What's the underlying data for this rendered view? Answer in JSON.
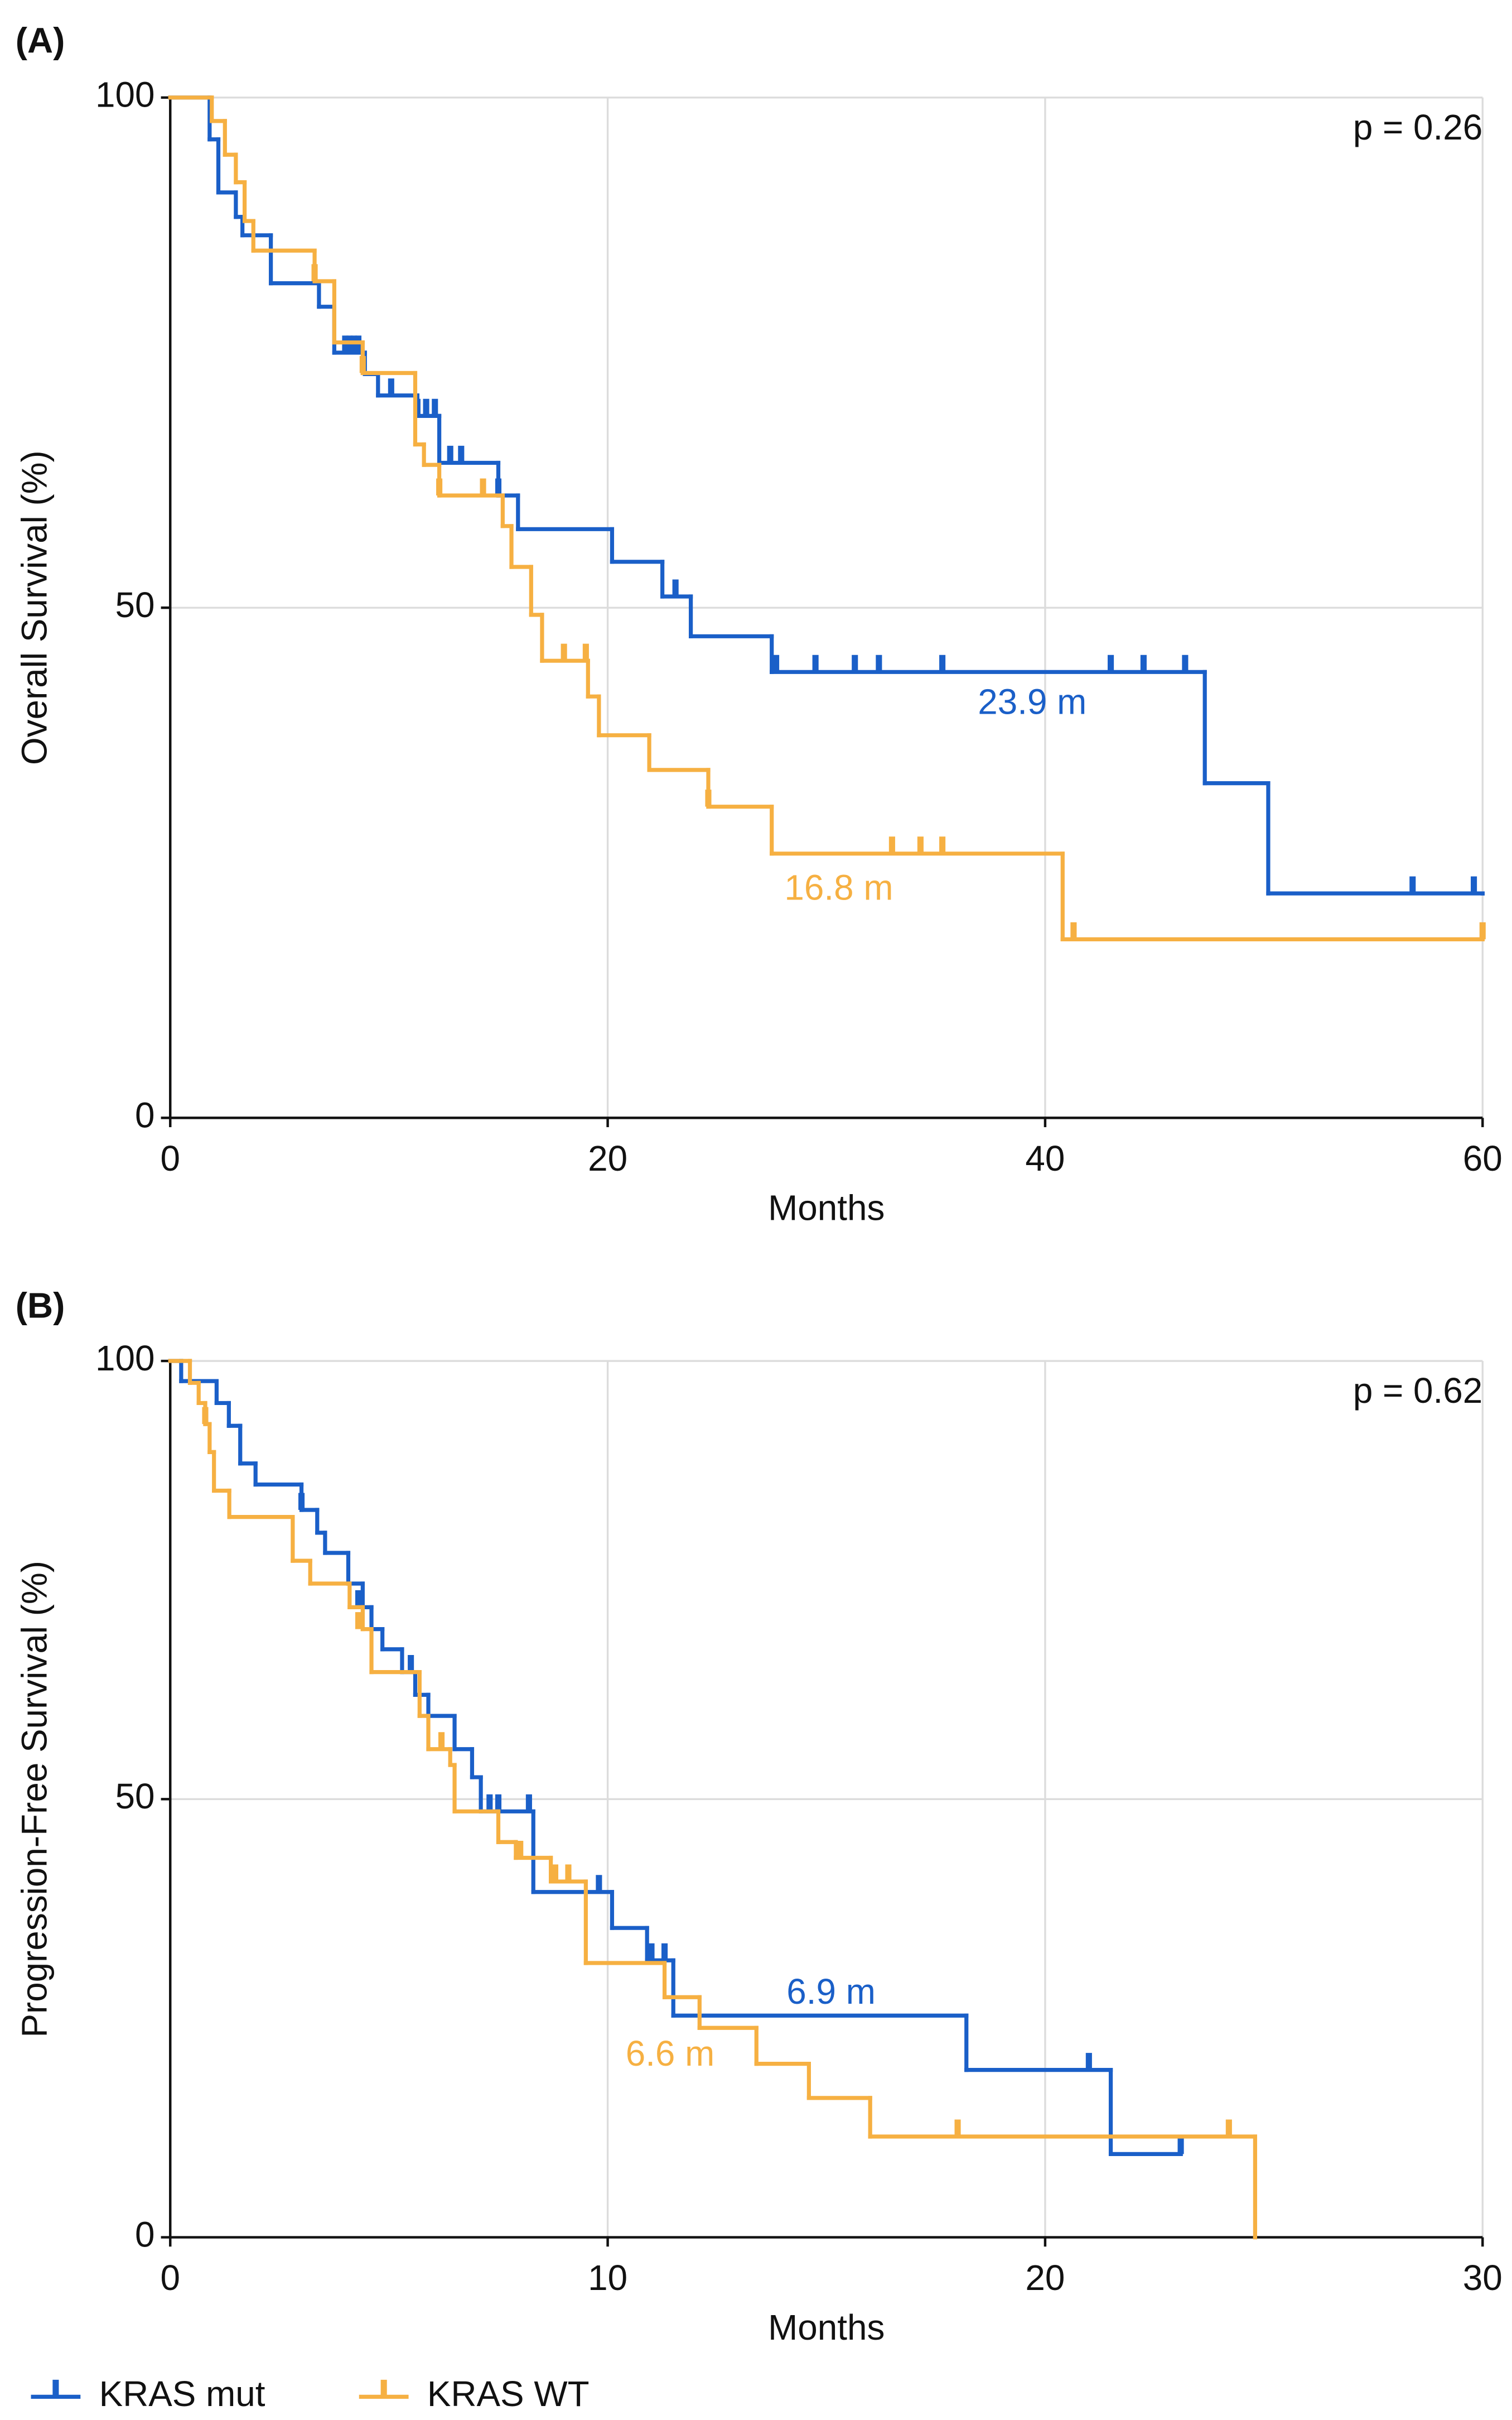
{
  "chart_data": [
    {
      "type": "step",
      "panel_label": "(A)",
      "annotation": "p = 0.26",
      "x_label": "Months",
      "y_label": "Overall Survival (%)",
      "xlim": [
        0,
        60
      ],
      "ylim": [
        0,
        100
      ],
      "xticks": [
        0,
        20,
        40,
        60
      ],
      "yticks": [
        0,
        50,
        100
      ],
      "grid": true,
      "series": [
        {
          "name": "KRAS mut",
          "color": "#1a5fc8",
          "median_label": "23.9 m",
          "x": [
            0,
            1.8,
            2.2,
            3.0,
            3.3,
            4.6,
            6.8,
            7.5,
            8.9,
            9.5,
            11.3,
            12.3,
            15.0,
            15.9,
            20.2,
            22.5,
            23.8,
            27.5,
            47.3,
            50.2,
            60
          ],
          "values": [
            100,
            95.9,
            90.7,
            88.3,
            86.5,
            81.8,
            79.5,
            75.0,
            72.9,
            70.8,
            68.8,
            64.2,
            61.0,
            57.7,
            54.5,
            51.1,
            47.2,
            43.7,
            32.8,
            22.0,
            22.0
          ],
          "censor_x": [
            8.0,
            8.2,
            8.4,
            8.6,
            10.1,
            11.3,
            11.7,
            12.1,
            12.8,
            13.3,
            15.0,
            23.1,
            27.7,
            29.5,
            31.3,
            32.4,
            35.3,
            43.0,
            44.5,
            46.4,
            56.8,
            59.6
          ],
          "censor_values": [
            75.0,
            75.0,
            75.0,
            75.0,
            70.8,
            68.8,
            68.8,
            68.8,
            64.2,
            64.2,
            61.0,
            51.1,
            43.7,
            43.7,
            43.7,
            43.7,
            43.7,
            43.7,
            43.7,
            43.7,
            22.0,
            22.0
          ]
        },
        {
          "name": "KRAS WT",
          "color": "#f6b042",
          "median_label": "16.8 m",
          "x": [
            0,
            1.9,
            2.5,
            3.0,
            3.4,
            3.8,
            6.6,
            7.5,
            8.8,
            11.2,
            11.6,
            12.3,
            15.2,
            15.6,
            16.5,
            17.0,
            19.1,
            19.6,
            21.9,
            24.6,
            27.5,
            40.8,
            60
          ],
          "values": [
            100,
            97.7,
            94.4,
            91.7,
            87.9,
            85.0,
            82.0,
            76.0,
            73.0,
            66.0,
            64.0,
            61.0,
            58.0,
            54.0,
            49.3,
            44.8,
            41.3,
            37.5,
            34.1,
            30.5,
            25.9,
            17.5,
            17.5
          ],
          "censor_x": [
            6.6,
            8.8,
            12.3,
            14.3,
            18.0,
            19.0,
            24.6,
            33.0,
            34.3,
            35.3,
            41.3,
            60
          ],
          "censor_values": [
            82.0,
            73.0,
            61.0,
            61.0,
            44.8,
            44.8,
            30.5,
            25.9,
            25.9,
            25.9,
            17.5,
            17.5
          ]
        }
      ]
    },
    {
      "type": "step",
      "panel_label": "(B)",
      "annotation": "p = 0.62",
      "x_label": "Months",
      "y_label": "Progression-Free Survival (%)",
      "xlim": [
        0,
        30
      ],
      "ylim": [
        0,
        100
      ],
      "xticks": [
        0,
        10,
        20,
        30
      ],
      "yticks": [
        0,
        50,
        100
      ],
      "grid": true,
      "series": [
        {
          "name": "KRAS mut",
          "color": "#1a5fc8",
          "median_label": "6.9 m",
          "x": [
            0,
            0.25,
            1.06,
            1.34,
            1.6,
            1.95,
            3.0,
            3.36,
            3.54,
            4.07,
            4.4,
            4.6,
            4.85,
            5.3,
            5.6,
            5.9,
            6.5,
            6.9,
            7.1,
            8.3,
            10.1,
            10.9,
            11.5,
            18.2,
            21.5,
            23.1
          ],
          "values": [
            100,
            97.7,
            95.2,
            92.6,
            88.3,
            85.9,
            83.0,
            80.4,
            78.1,
            74.6,
            71.9,
            69.4,
            67.1,
            64.5,
            61.9,
            59.5,
            55.7,
            52.5,
            48.6,
            39.4,
            35.3,
            31.6,
            25.3,
            19.1,
            9.5,
            9.5
          ],
          "censor_x": [
            3.0,
            4.3,
            5.5,
            7.3,
            7.5,
            8.2,
            9.8,
            11.0,
            11.3,
            21.0,
            23.1
          ],
          "censor_values": [
            83.0,
            71.9,
            64.5,
            48.6,
            48.6,
            48.6,
            39.4,
            31.6,
            31.6,
            19.1,
            9.5
          ]
        },
        {
          "name": "KRAS WT",
          "color": "#f6b042",
          "median_label": "6.6 m",
          "x": [
            0,
            0.45,
            0.65,
            0.8,
            0.9,
            1.0,
            1.35,
            2.8,
            3.2,
            4.1,
            4.4,
            4.6,
            5.7,
            5.9,
            6.4,
            6.5,
            7.5,
            7.9,
            8.7,
            9.5,
            11.3,
            12.1,
            13.4,
            14.6,
            16.0,
            24.8
          ],
          "values": [
            100,
            97.5,
            95.2,
            92.8,
            89.6,
            85.2,
            82.2,
            77.2,
            74.6,
            71.9,
            69.4,
            64.5,
            59.5,
            55.7,
            53.9,
            48.6,
            45.1,
            43.3,
            40.6,
            31.3,
            27.4,
            23.9,
            19.8,
            15.9,
            11.5,
            0
          ],
          "censor_x": [
            0.8,
            4.3,
            6.2,
            8.0,
            8.8,
            9.1,
            18.0,
            24.2
          ],
          "censor_values": [
            92.8,
            69.4,
            55.7,
            43.3,
            40.6,
            40.6,
            11.5,
            11.5
          ]
        }
      ]
    }
  ]
}
